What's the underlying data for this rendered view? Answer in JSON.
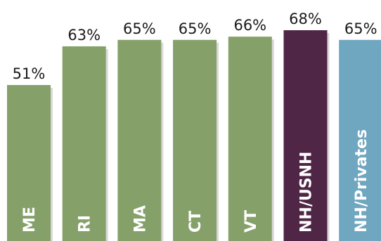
{
  "chart_data": {
    "type": "bar",
    "categories": [
      "ME",
      "RI",
      "MA",
      "CT",
      "VT",
      "NH/USNH",
      "NH/Privates"
    ],
    "values": [
      51,
      63,
      65,
      65,
      66,
      68,
      65
    ],
    "value_labels": [
      "51%",
      "63%",
      "65%",
      "65%",
      "66%",
      "68%",
      "65%"
    ],
    "title": "",
    "xlabel": "",
    "ylabel": "",
    "ylim": [
      0,
      75
    ],
    "grid": false,
    "legend": "none",
    "category_labels_inside_bars": true,
    "category_label_orientation": "vertical",
    "bar_colors": [
      "#86a06a",
      "#86a06a",
      "#86a06a",
      "#86a06a",
      "#86a06a",
      "#4f2645",
      "#6fa6c0"
    ]
  }
}
